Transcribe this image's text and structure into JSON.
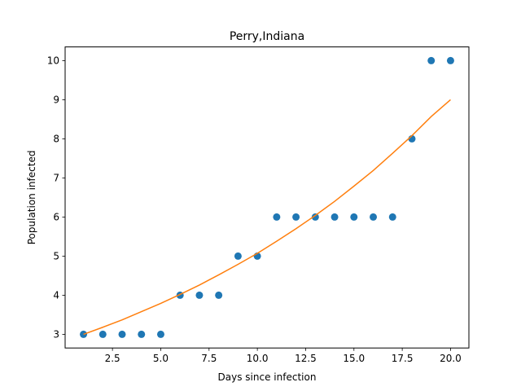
{
  "chart_data": {
    "type": "scatter",
    "title": "Perry,Indiana",
    "xlabel": "Days since infection",
    "ylabel": "Population infected",
    "xlim": [
      0.05,
      20.95
    ],
    "ylim": [
      2.65,
      10.35
    ],
    "xticks": [
      2.5,
      5.0,
      7.5,
      10.0,
      12.5,
      15.0,
      17.5,
      20.0
    ],
    "xtick_labels": [
      "2.5",
      "5.0",
      "7.5",
      "10.0",
      "12.5",
      "15.0",
      "17.5",
      "20.0"
    ],
    "yticks": [
      3,
      4,
      5,
      6,
      7,
      8,
      9,
      10
    ],
    "ytick_labels": [
      "3",
      "4",
      "5",
      "6",
      "7",
      "8",
      "9",
      "10"
    ],
    "grid": false,
    "legend": "none",
    "series": [
      {
        "kind": "scatter",
        "color": "#1f77b4",
        "x": [
          1,
          2,
          3,
          4,
          5,
          6,
          7,
          8,
          9,
          10,
          11,
          12,
          13,
          14,
          15,
          16,
          17,
          18,
          19,
          20
        ],
        "y": [
          3,
          3,
          3,
          3,
          3,
          4,
          4,
          4,
          5,
          5,
          6,
          6,
          6,
          6,
          6,
          6,
          6,
          8,
          10,
          10
        ]
      },
      {
        "kind": "line",
        "color": "#ff7f0e",
        "x": [
          1,
          2,
          3,
          4,
          5,
          6,
          7,
          8,
          9,
          10,
          11,
          12,
          13,
          14,
          15,
          16,
          17,
          18,
          19,
          20
        ],
        "y": [
          3.0,
          3.18,
          3.37,
          3.58,
          3.79,
          4.02,
          4.26,
          4.52,
          4.79,
          5.07,
          5.38,
          5.7,
          6.04,
          6.4,
          6.79,
          7.19,
          7.63,
          8.08,
          8.57,
          9.0
        ]
      }
    ]
  }
}
